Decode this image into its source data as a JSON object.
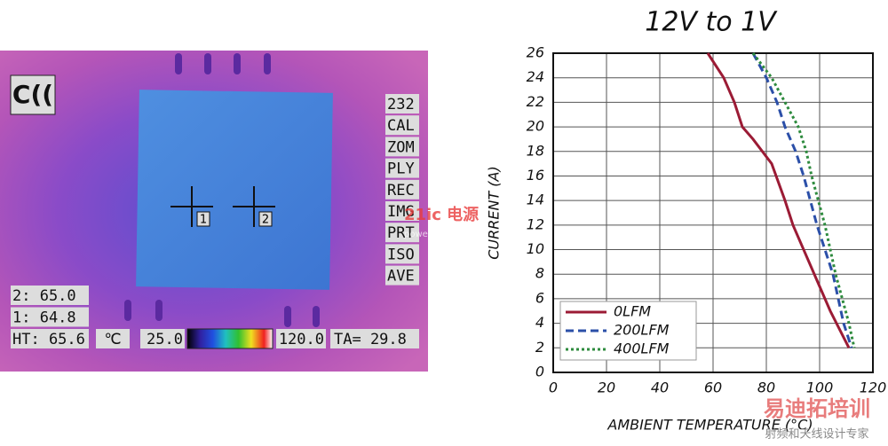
{
  "thermal": {
    "menu": [
      "232",
      "CAL",
      "ZOM",
      "PLY",
      "REC",
      "IMG",
      "PRT",
      "ISO",
      "AVE"
    ],
    "readouts": [
      "2:  65.0",
      "1:  64.8",
      "HT: 65.6"
    ],
    "unit": "℃",
    "scale_min": "25.0",
    "scale_max": "120.0",
    "ambient": "TA= 29.8",
    "markers": [
      "1",
      "2"
    ]
  },
  "watermarks": {
    "logo": "21ic 电源",
    "url": "power.21ic.com",
    "brand": "易迪拓培训",
    "slogan": "射频和天线设计专家"
  },
  "chart_data": {
    "type": "line",
    "title": "12V to 1V",
    "x_label": "AMBIENT TEMPERATURE (°C)",
    "y_label": "CURRENT (A)",
    "xlim": [
      0,
      120
    ],
    "xticks": [
      0,
      20,
      40,
      60,
      80,
      100,
      120
    ],
    "ylim": [
      0,
      26
    ],
    "yticks": [
      0,
      2,
      4,
      6,
      8,
      10,
      12,
      14,
      16,
      18,
      20,
      22,
      24,
      26
    ],
    "grid": true,
    "legend": "lower left",
    "series": [
      {
        "name": "0LFM",
        "color": "#9b1b35",
        "dash": "solid",
        "x": [
          58,
          64,
          68,
          71,
          75,
          82,
          87,
          90,
          94,
          98,
          104,
          111
        ],
        "values": [
          26,
          24,
          22,
          20,
          19,
          17,
          14,
          12,
          10,
          8,
          5,
          2
        ]
      },
      {
        "name": "200LFM",
        "color": "#2b4fa8",
        "dash": "dashed",
        "x": [
          75,
          80,
          84,
          87,
          91,
          94,
          99,
          105,
          109,
          112
        ],
        "values": [
          26,
          24,
          22,
          20,
          18,
          16,
          12,
          8,
          4,
          2
        ]
      },
      {
        "name": "400LFM",
        "color": "#2e8b3e",
        "dash": "dotted",
        "x": [
          75,
          82,
          87,
          92,
          95,
          97,
          102,
          106,
          111,
          113
        ],
        "values": [
          26,
          24,
          22,
          20,
          18,
          16,
          12,
          8,
          4,
          2
        ]
      }
    ]
  }
}
